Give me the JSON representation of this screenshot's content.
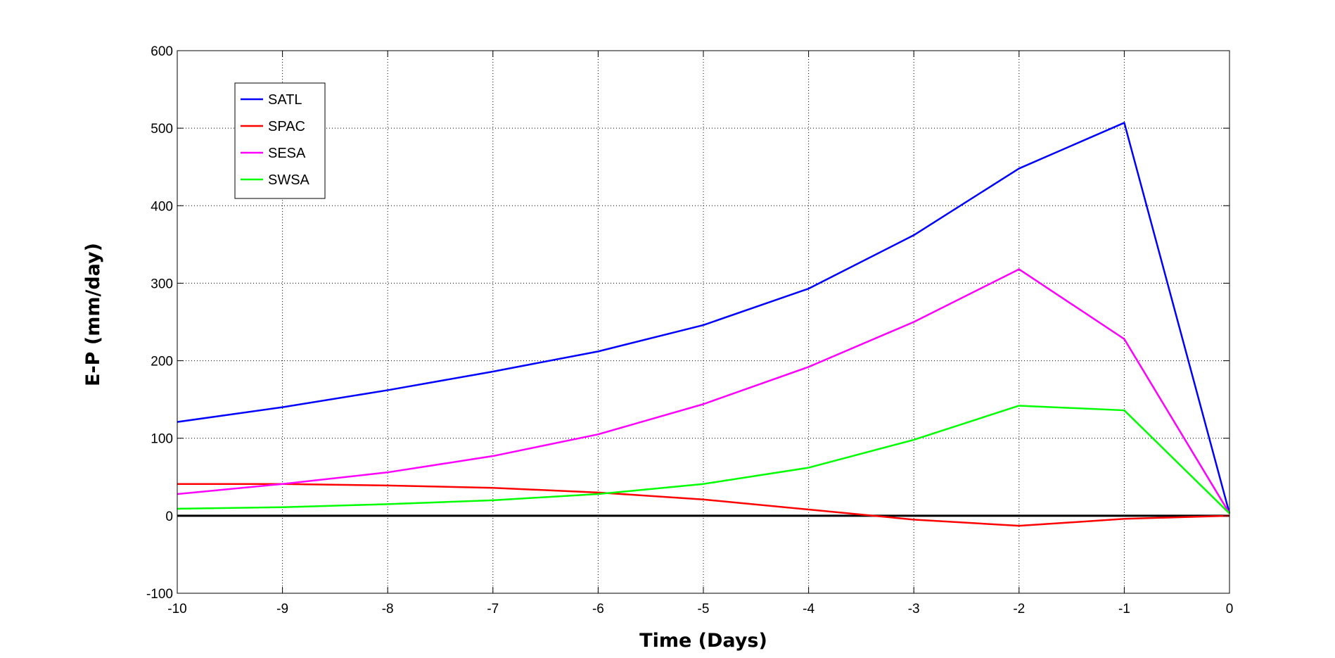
{
  "chart_data": {
    "type": "line",
    "title": "",
    "xlabel": "Time (Days)",
    "ylabel": "E-P (mm/day)",
    "xlim": [
      -10,
      0
    ],
    "ylim": [
      -100,
      600
    ],
    "xticks": [
      -10,
      -9,
      -8,
      -7,
      -6,
      -5,
      -4,
      -3,
      -2,
      -1,
      0
    ],
    "yticks": [
      -100,
      0,
      100,
      200,
      300,
      400,
      500,
      600
    ],
    "x": [
      -10,
      -9,
      -8,
      -7,
      -6,
      -5,
      -4,
      -3,
      -2,
      -1,
      0
    ],
    "grid": true,
    "legend_position": "top-left",
    "reference_line": {
      "y": 0,
      "color": "#000000"
    },
    "series": [
      {
        "name": "SATL",
        "color": "#0000ff",
        "values": [
          121,
          140,
          162,
          186,
          212,
          246,
          293,
          362,
          448,
          507,
          3
        ]
      },
      {
        "name": "SPAC",
        "color": "#ff0000",
        "values": [
          41,
          41,
          39,
          36,
          30,
          21,
          8,
          -5,
          -13,
          -4,
          0
        ]
      },
      {
        "name": "SESA",
        "color": "#ff00ff",
        "values": [
          28,
          41,
          56,
          77,
          105,
          144,
          192,
          250,
          318,
          228,
          3
        ]
      },
      {
        "name": "SWSA",
        "color": "#00ff00",
        "values": [
          9,
          11,
          15,
          20,
          28,
          41,
          62,
          98,
          142,
          136,
          3
        ]
      }
    ]
  }
}
